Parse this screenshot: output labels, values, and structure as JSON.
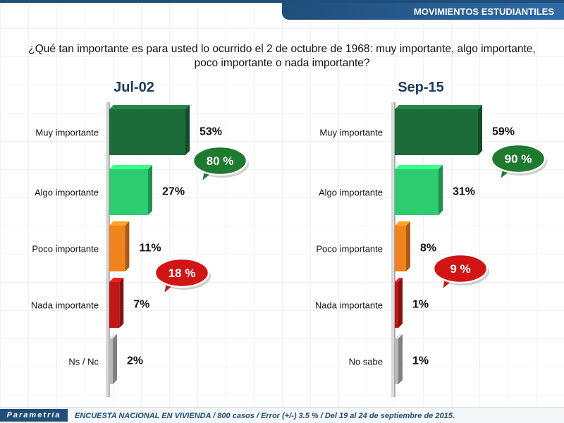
{
  "header": {
    "banner": "MOVIMIENTOS ESTUDIANTILES"
  },
  "question": "¿Qué tan importante es para usted lo ocurrido el 2 de octubre de 1968: muy importante, algo importante, poco importante o nada importante?",
  "footer": {
    "logo": "Parametría",
    "note": "ENCUESTA NACIONAL EN VIVIENDA / 800 casos / Error (+/-) 3.5 % / Del 19 al 24 de septiembre de 2015."
  },
  "colors": {
    "dark_green": "#1e6b3a",
    "light_green": "#2ecc71",
    "orange": "#f0831e",
    "red": "#c01818",
    "gray": "#b8b8b8",
    "brand": "#1f4e79"
  },
  "chart_data": [
    {
      "type": "bar",
      "title": "Jul-02",
      "categories": [
        "Muy importante",
        "Algo importante",
        "Poco importante",
        "Nada importante",
        "Ns / Nc"
      ],
      "values": [
        53,
        27,
        11,
        7,
        2
      ],
      "value_labels": [
        "53%",
        "27%",
        "11%",
        "7%",
        "2%"
      ],
      "bubbles": [
        {
          "text": "80 %",
          "color": "green"
        },
        {
          "text": "18 %",
          "color": "red"
        }
      ]
    },
    {
      "type": "bar",
      "title": "Sep-15",
      "categories": [
        "Muy importante",
        "Algo importante",
        "Poco importante",
        "Nada importante",
        "No sabe"
      ],
      "values": [
        59,
        31,
        8,
        1,
        1
      ],
      "value_labels": [
        "59%",
        "31%",
        "8%",
        "1%",
        "1%"
      ],
      "bubbles": [
        {
          "text": "90 %",
          "color": "green"
        },
        {
          "text": "9 %",
          "color": "red"
        }
      ]
    }
  ]
}
